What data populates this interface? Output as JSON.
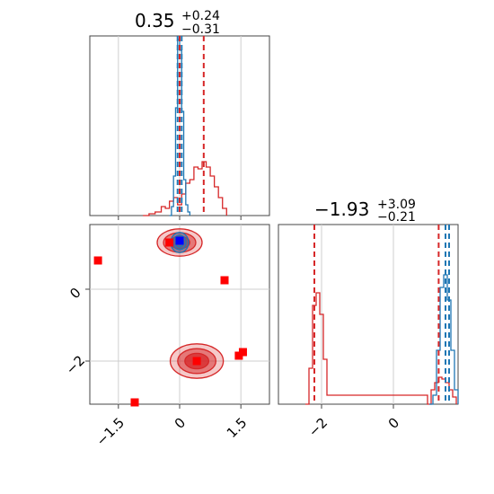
{
  "chart_data": [
    {
      "panel": "marginal-x",
      "type": "line",
      "title": {
        "value": "0.35",
        "plus": "+0.24",
        "minus": "−0.31"
      },
      "xlim": [
        -2.2,
        2.2
      ],
      "xticks": [
        -1.5,
        0.0,
        1.5
      ],
      "ylim": [
        0,
        1
      ],
      "grid": true,
      "colors": {
        "red": "#d62728",
        "blue": "#1f77b4"
      },
      "series": [
        {
          "name": "",
          "color": "#d62728",
          "style": "step",
          "x": [
            -0.9,
            -0.75,
            -0.6,
            -0.45,
            -0.35,
            -0.25,
            -0.15,
            -0.05,
            0.05,
            0.15,
            0.25,
            0.35,
            0.45,
            0.55,
            0.65,
            0.75,
            0.85,
            0.95,
            1.05,
            1.15
          ],
          "y": [
            0.0,
            0.01,
            0.02,
            0.05,
            0.04,
            0.08,
            0.1,
            0.06,
            0.12,
            0.18,
            0.2,
            0.27,
            0.26,
            0.3,
            0.27,
            0.22,
            0.16,
            0.1,
            0.04,
            0.0
          ]
        },
        {
          "name": "",
          "color": "#1f77b4",
          "style": "step",
          "x": [
            -0.25,
            -0.2,
            -0.15,
            -0.1,
            -0.05,
            0.0,
            0.05,
            0.1,
            0.15,
            0.2,
            0.25
          ],
          "y": [
            0.0,
            0.05,
            0.22,
            0.6,
            0.98,
            0.92,
            0.58,
            0.2,
            0.06,
            0.02,
            0.0
          ]
        }
      ],
      "vlines": [
        {
          "x": -0.05,
          "color": "#1f77b4"
        },
        {
          "x": 0.05,
          "color": "#1f77b4"
        },
        {
          "x": 0.0,
          "color": "#d62728"
        },
        {
          "x": 0.59,
          "color": "#d62728"
        }
      ]
    },
    {
      "panel": "joint",
      "type": "scatter",
      "xlim": [
        -2.2,
        2.2
      ],
      "ylim": [
        -3.2,
        1.8
      ],
      "xticks": [
        -1.5,
        0.0,
        1.5
      ],
      "yticks": [
        -2,
        0
      ],
      "grid": true,
      "contours": [
        {
          "cx": 0.0,
          "cy": 1.3,
          "rx": 0.55,
          "ry": 0.38,
          "color": "#d62728"
        },
        {
          "cx": 0.42,
          "cy": -2.0,
          "rx": 0.65,
          "ry": 0.48,
          "color": "#d62728"
        },
        {
          "cx": 0.0,
          "cy": 1.3,
          "rx": 0.22,
          "ry": 0.28,
          "color": "#1f77b4"
        }
      ],
      "points": [
        {
          "x": -2.0,
          "y": 0.8,
          "color": "#ff0000"
        },
        {
          "x": -0.25,
          "y": 1.3,
          "color": "#ff0000"
        },
        {
          "x": 1.1,
          "y": 0.25,
          "color": "#ff0000"
        },
        {
          "x": 1.45,
          "y": -1.85,
          "color": "#ff0000"
        },
        {
          "x": 1.55,
          "y": -1.75,
          "color": "#ff0000"
        },
        {
          "x": 0.42,
          "y": -2.0,
          "color": "#ff0000"
        },
        {
          "x": -1.1,
          "y": -3.15,
          "color": "#ff0000"
        },
        {
          "x": 0.0,
          "y": 1.35,
          "color": "#0000ff"
        }
      ]
    },
    {
      "panel": "marginal-y",
      "type": "line",
      "title": {
        "value": "−1.93",
        "plus": "+3.09",
        "minus": "−0.21"
      },
      "xlim": [
        -3.2,
        1.8
      ],
      "xticks": [
        -2,
        0
      ],
      "ylim": [
        0,
        1
      ],
      "grid": true,
      "series": [
        {
          "name": "",
          "color": "#d62728",
          "style": "step",
          "x": [
            -2.45,
            -2.35,
            -2.25,
            -2.15,
            -2.05,
            -1.95,
            -1.85,
            0.95,
            1.05,
            1.15,
            1.25,
            1.35,
            1.45,
            1.55,
            1.65,
            1.75
          ],
          "y": [
            0.0,
            0.2,
            0.55,
            0.62,
            0.5,
            0.25,
            0.05,
            0.0,
            0.08,
            0.12,
            0.15,
            0.14,
            0.12,
            0.08,
            0.04,
            0.0
          ]
        },
        {
          "name": "",
          "color": "#1f77b4",
          "style": "step",
          "x": [
            1.0,
            1.1,
            1.2,
            1.3,
            1.4,
            1.5,
            1.6,
            1.7,
            1.8
          ],
          "y": [
            0.0,
            0.05,
            0.3,
            0.65,
            0.72,
            0.58,
            0.3,
            0.08,
            0.0
          ]
        }
      ],
      "vlines": [
        {
          "x": -2.2,
          "color": "#d62728"
        },
        {
          "x": 1.26,
          "color": "#d62728"
        },
        {
          "x": 1.45,
          "color": "#1f77b4"
        },
        {
          "x": 1.55,
          "color": "#1f77b4"
        }
      ]
    }
  ]
}
